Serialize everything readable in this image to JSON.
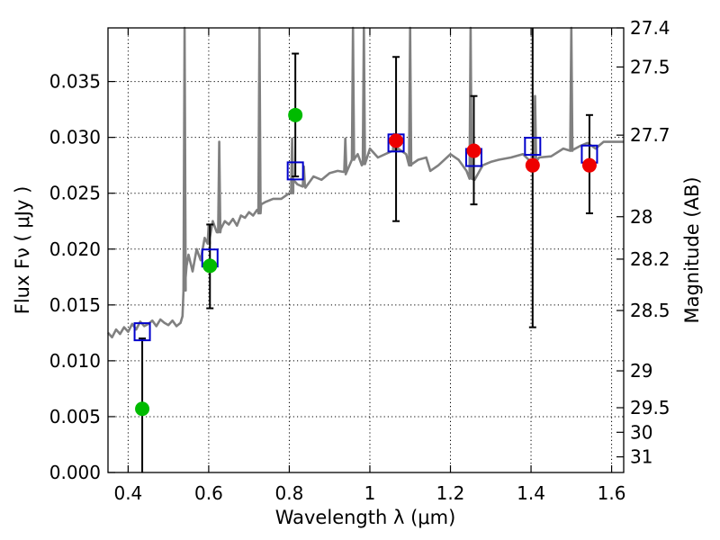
{
  "chart_data": {
    "type": "scatter",
    "title": "",
    "xlabel": "Wavelength  λ (μm)",
    "ylabel": "Flux  Fν  ( μJy )",
    "y2label": "Magnitude (AB)",
    "xlim": [
      0.35,
      1.63
    ],
    "ylim": [
      0.0,
      0.0398
    ],
    "grid": true,
    "x_ticks": [
      0.4,
      0.6,
      0.8,
      1.0,
      1.2,
      1.4,
      1.6
    ],
    "x_tick_labels": [
      "0.4",
      "0.6",
      "0.8",
      "1",
      "1.2",
      "1.4",
      "1.6"
    ],
    "y_ticks": [
      0.0,
      0.005,
      0.01,
      0.015,
      0.02,
      0.025,
      0.03,
      0.035
    ],
    "y_tick_labels": [
      "0.000",
      "0.005",
      "0.010",
      "0.015",
      "0.020",
      "0.025",
      "0.030",
      "0.035"
    ],
    "y2_ticks": [
      {
        "label": "27.4",
        "flux": 0.0398
      },
      {
        "label": "27.5",
        "flux": 0.0363
      },
      {
        "label": "27.7",
        "flux": 0.0302
      },
      {
        "label": "28",
        "flux": 0.0229
      },
      {
        "label": "28.2",
        "flux": 0.0191
      },
      {
        "label": "28.5",
        "flux": 0.0145
      },
      {
        "label": "29",
        "flux": 0.0091
      },
      {
        "label": "29.5",
        "flux": 0.0058
      },
      {
        "label": "30",
        "flux": 0.0036
      },
      {
        "label": "31",
        "flux": 0.0014
      }
    ],
    "colors": {
      "spectrum": "#808080",
      "model": "#0000cc",
      "green": "#00bb00",
      "red": "#ee0000",
      "errorbar": "#000000",
      "grid": "#000000"
    },
    "spectrum": {
      "x": [
        0.35,
        0.36,
        0.37,
        0.38,
        0.39,
        0.4,
        0.41,
        0.42,
        0.43,
        0.44,
        0.45,
        0.46,
        0.47,
        0.48,
        0.49,
        0.5,
        0.51,
        0.52,
        0.53,
        0.535,
        0.54,
        0.545,
        0.55,
        0.56,
        0.57,
        0.58,
        0.59,
        0.6,
        0.61,
        0.62,
        0.63,
        0.64,
        0.65,
        0.66,
        0.67,
        0.68,
        0.69,
        0.7,
        0.71,
        0.72,
        0.725,
        0.73,
        0.74,
        0.76,
        0.78,
        0.8,
        0.81,
        0.82,
        0.84,
        0.86,
        0.88,
        0.9,
        0.92,
        0.94,
        0.96,
        0.97,
        0.98,
        1.0,
        1.02,
        1.05,
        1.07,
        1.09,
        1.1,
        1.12,
        1.14,
        1.15,
        1.17,
        1.2,
        1.22,
        1.24,
        1.26,
        1.28,
        1.3,
        1.32,
        1.35,
        1.38,
        1.4,
        1.42,
        1.45,
        1.48,
        1.5,
        1.52,
        1.54,
        1.56,
        1.58,
        1.6,
        1.63
      ],
      "y": [
        0.0125,
        0.0121,
        0.0128,
        0.0124,
        0.013,
        0.0126,
        0.0133,
        0.0128,
        0.0135,
        0.0131,
        0.0133,
        0.0136,
        0.0131,
        0.0137,
        0.0134,
        0.0132,
        0.0136,
        0.0131,
        0.0134,
        0.014,
        0.0163,
        0.0185,
        0.0195,
        0.018,
        0.02,
        0.019,
        0.021,
        0.0205,
        0.0225,
        0.0215,
        0.0218,
        0.0225,
        0.0222,
        0.0227,
        0.0221,
        0.023,
        0.0228,
        0.0233,
        0.023,
        0.0235,
        0.0232,
        0.024,
        0.0242,
        0.0245,
        0.0245,
        0.025,
        0.0262,
        0.0258,
        0.0255,
        0.0265,
        0.0262,
        0.0268,
        0.027,
        0.0267,
        0.028,
        0.0285,
        0.0275,
        0.029,
        0.0282,
        0.0287,
        0.029,
        0.0285,
        0.0275,
        0.028,
        0.0282,
        0.027,
        0.0275,
        0.0285,
        0.028,
        0.027,
        0.0262,
        0.0275,
        0.0278,
        0.028,
        0.0282,
        0.0285,
        0.0278,
        0.0282,
        0.0283,
        0.029,
        0.0288,
        0.0292,
        0.0295,
        0.029,
        0.0296,
        0.0296,
        0.0296
      ]
    },
    "spectrum_lines": [
      {
        "x": 0.54,
        "peak": 0.0398,
        "base": 0.0163
      },
      {
        "x": 0.6,
        "peak": 0.0222,
        "base": 0.0205
      },
      {
        "x": 0.626,
        "peak": 0.0296,
        "base": 0.0215
      },
      {
        "x": 0.726,
        "peak": 0.0398,
        "base": 0.0232
      },
      {
        "x": 0.807,
        "peak": 0.0299,
        "base": 0.025
      },
      {
        "x": 0.836,
        "peak": 0.0274,
        "base": 0.0256
      },
      {
        "x": 0.939,
        "peak": 0.0299,
        "base": 0.0269
      },
      {
        "x": 0.958,
        "peak": 0.0398,
        "base": 0.028
      },
      {
        "x": 0.985,
        "peak": 0.0398,
        "base": 0.0276
      },
      {
        "x": 1.06,
        "peak": 0.0303,
        "base": 0.0288
      },
      {
        "x": 1.1,
        "peak": 0.0398,
        "base": 0.0275
      },
      {
        "x": 1.25,
        "peak": 0.0398,
        "base": 0.0263
      },
      {
        "x": 1.41,
        "peak": 0.0337,
        "base": 0.0278
      },
      {
        "x": 1.5,
        "peak": 0.0398,
        "base": 0.0288
      }
    ],
    "model_points": {
      "x": [
        0.435,
        0.603,
        0.815,
        1.065,
        1.258,
        1.404,
        1.545
      ],
      "y": [
        0.0126,
        0.0192,
        0.027,
        0.0295,
        0.0282,
        0.0292,
        0.0285
      ]
    },
    "green_points": {
      "x": [
        0.435,
        0.603,
        0.815
      ],
      "y": [
        0.0057,
        0.0185,
        0.032
      ],
      "err_low": [
        0.0,
        0.0147,
        0.0265
      ],
      "err_high": [
        0.012,
        0.0222,
        0.0375
      ]
    },
    "red_points": {
      "x": [
        1.065,
        1.258,
        1.404,
        1.545
      ],
      "y": [
        0.0297,
        0.0288,
        0.0275,
        0.0275
      ],
      "err_low": [
        0.0225,
        0.024,
        0.013,
        0.0232
      ],
      "err_high": [
        0.0372,
        0.0337,
        0.0398,
        0.032
      ]
    }
  }
}
